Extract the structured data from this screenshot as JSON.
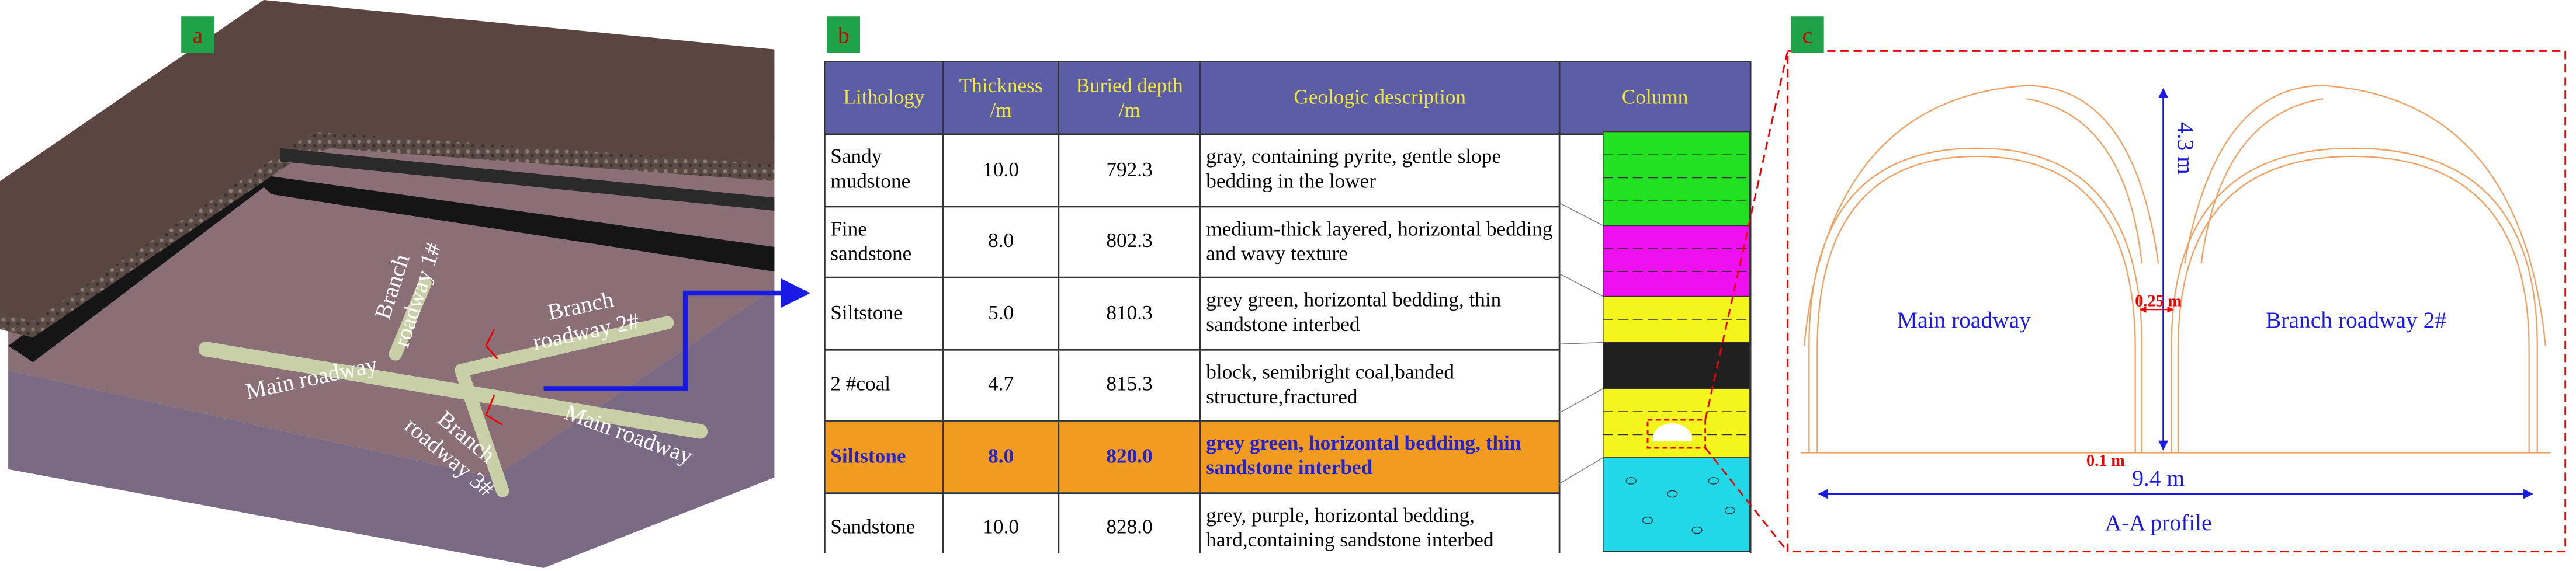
{
  "panel_a": {
    "tag": "a",
    "branch_1": [
      "Branch",
      "roadway 1#"
    ],
    "branch_2": [
      "Branch",
      "roadway 2#"
    ],
    "main_left": "Main roadway",
    "branch_3": [
      "Branch",
      "roadway 3#"
    ],
    "main_right": "Main roadway"
  },
  "panel_b": {
    "tag": "b",
    "table": {
      "header": [
        "Lithology",
        "Thickness /m",
        "Buried depth /m",
        "Geologic description",
        "Column"
      ],
      "rows": [
        [
          "Sandy mudstone",
          "10.0",
          "792.3",
          "gray, containing pyrite, gentle slope bedding in the lower"
        ],
        [
          "Fine sandstone",
          "8.0",
          "802.3",
          "medium-thick layered, horizontal bedding and wavy texture"
        ],
        [
          "Siltstone",
          "5.0",
          "810.3",
          "grey green, horizontal bedding, thin sandstone interbed"
        ],
        [
          "2 #coal",
          "4.7",
          "815.3",
          "block, semibright coal,banded structure,fractured"
        ],
        [
          "Siltstone",
          "8.0",
          "820.0",
          "grey green, horizontal bedding, thin sandstone interbed"
        ],
        [
          "Sandstone",
          "10.0",
          "828.0",
          "grey, purple, horizontal bedding, hard,containing sandstone interbed"
        ]
      ]
    }
  },
  "panel_c": {
    "tag": "c",
    "height_label": "4.3 m",
    "pillar_label": "0.25 m",
    "main_label": "Main roadway",
    "branch_label": "Branch roadway 2#",
    "floor_label": "0.1 m",
    "width_label": "9.4 m",
    "caption": "A-A profile"
  }
}
